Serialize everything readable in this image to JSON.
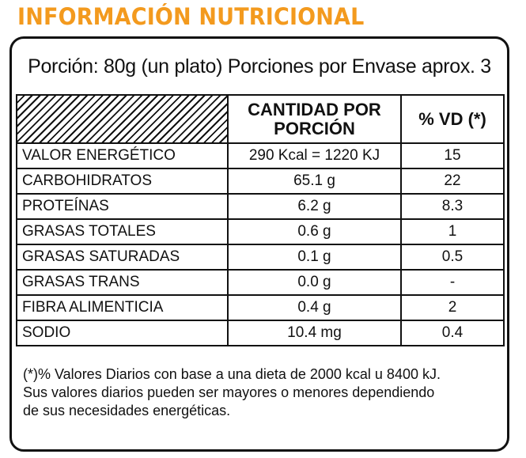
{
  "title": "INFORMACIÓN NUTRICIONAL",
  "colors": {
    "title": "#f39a1e",
    "border": "#111111",
    "background": "#ffffff"
  },
  "serving": "Porción:  80g (un plato) Porciones por Envase aprox. 3",
  "table": {
    "headers": {
      "amount": "CANTIDAD POR PORCIÓN",
      "dv": "% VD (*)"
    },
    "rows": [
      {
        "name": "VALOR ENERGÉTICO",
        "amount": "290 Kcal = 1220 KJ",
        "dv": "15"
      },
      {
        "name": "CARBOHIDRATOS",
        "amount": "65.1 g",
        "dv": "22"
      },
      {
        "name": "PROTEÍNAS",
        "amount": "6.2 g",
        "dv": "8.3"
      },
      {
        "name": "GRASAS TOTALES",
        "amount": "0.6 g",
        "dv": "1"
      },
      {
        "name": "GRASAS SATURADAS",
        "amount": "0.1 g",
        "dv": "0.5"
      },
      {
        "name": "GRASAS TRANS",
        "amount": "0.0 g",
        "dv": "-"
      },
      {
        "name": "FIBRA ALIMENTICIA",
        "amount": "0.4 g",
        "dv": "2"
      },
      {
        "name": "SODIO",
        "amount": "10.4 mg",
        "dv": "0.4"
      }
    ]
  },
  "footnote": {
    "line1": "(*)% Valores Diarios con base a una dieta de 2000 kcal u 8400 kJ.",
    "line2": "Sus valores diarios pueden ser mayores o menores dependiendo",
    "line3": "de sus necesidades energéticas."
  }
}
